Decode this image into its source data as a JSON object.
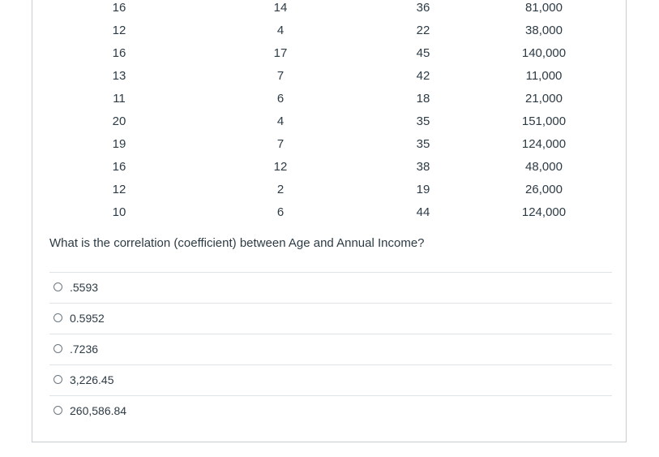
{
  "table": {
    "rows": [
      [
        "16",
        "14",
        "36",
        "81,000"
      ],
      [
        "12",
        "4",
        "22",
        "38,000"
      ],
      [
        "16",
        "17",
        "45",
        "140,000"
      ],
      [
        "13",
        "7",
        "42",
        "11,000"
      ],
      [
        "11",
        "6",
        "18",
        "21,000"
      ],
      [
        "20",
        "4",
        "35",
        "151,000"
      ],
      [
        "19",
        "7",
        "35",
        "124,000"
      ],
      [
        "16",
        "12",
        "38",
        "48,000"
      ],
      [
        "12",
        "2",
        "19",
        "26,000"
      ],
      [
        "10",
        "6",
        "44",
        "124,000"
      ]
    ]
  },
  "question": {
    "text": "What is the correlation (coefficient) between Age and Annual Income?"
  },
  "answers": [
    {
      "label": ".5593"
    },
    {
      "label": "0.5952"
    },
    {
      "label": ".7236"
    },
    {
      "label": "3,226.45"
    },
    {
      "label": "260,586.84"
    }
  ]
}
